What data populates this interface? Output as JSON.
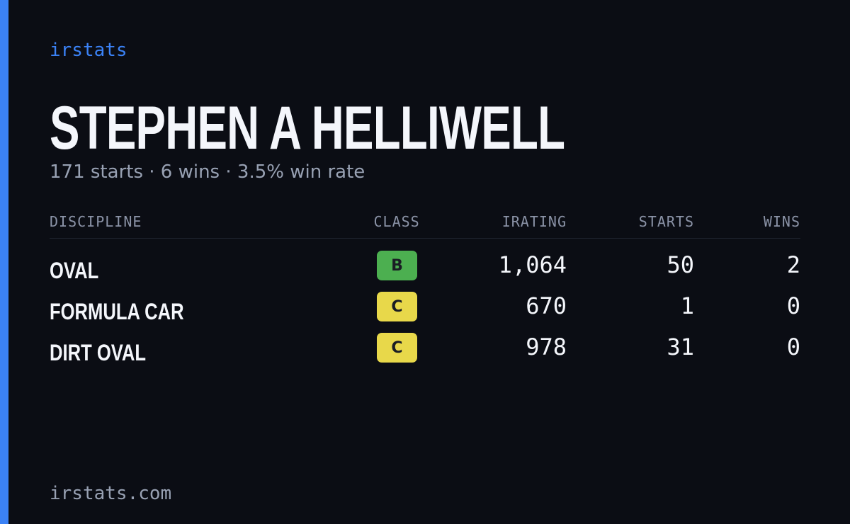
{
  "brand": "irstats",
  "driver": {
    "name": "STEPHEN A HELLIWELL",
    "summary": "171 starts · 6 wins · 3.5% win rate"
  },
  "table": {
    "headers": [
      "DISCIPLINE",
      "CLASS",
      "IRATING",
      "STARTS",
      "WINS"
    ],
    "rows": [
      {
        "discipline": "OVAL",
        "class": "B",
        "class_color": "#4caf50",
        "irating": "1,064",
        "starts": "50",
        "wins": "2"
      },
      {
        "discipline": "FORMULA CAR",
        "class": "C",
        "class_color": "#e8d84a",
        "irating": "670",
        "starts": "1",
        "wins": "0"
      },
      {
        "discipline": "DIRT OVAL",
        "class": "C",
        "class_color": "#e8d84a",
        "irating": "978",
        "starts": "31",
        "wins": "0"
      }
    ]
  },
  "footer": "irstats.com"
}
